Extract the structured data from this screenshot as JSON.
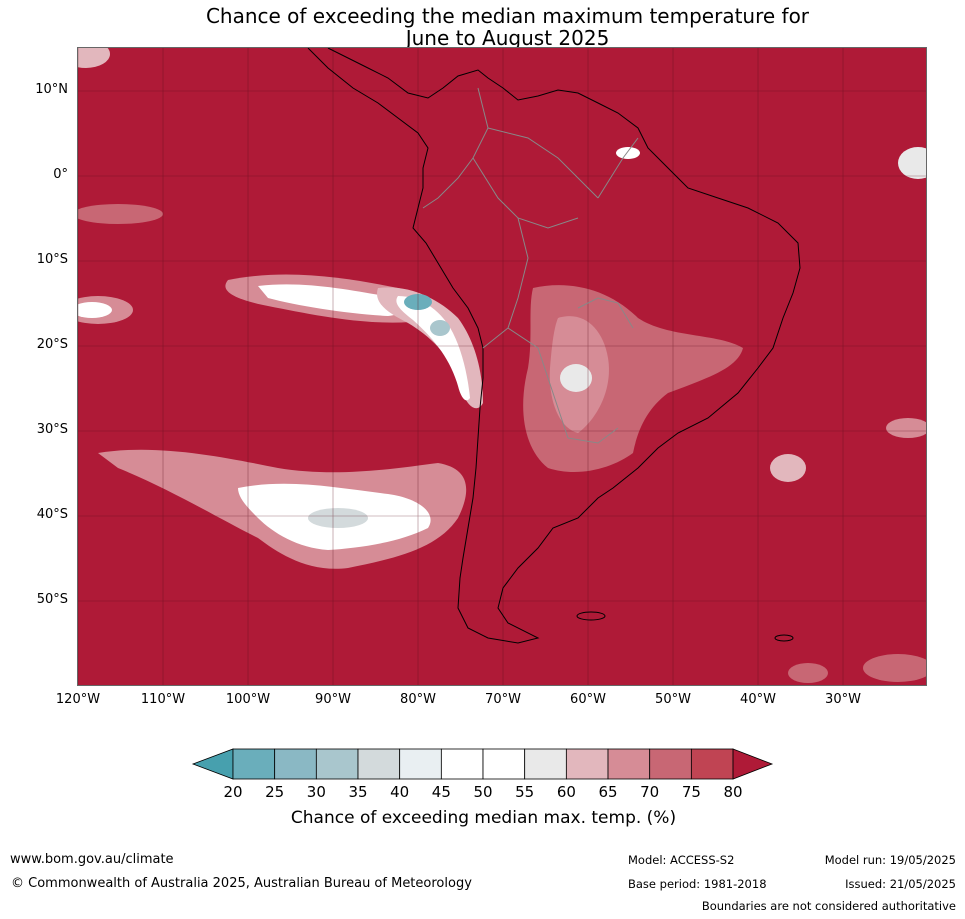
{
  "title": {
    "line1": "Chance of exceeding the median maximum temperature for",
    "line2": "June to August 2025"
  },
  "map": {
    "background_color": "#af1a37",
    "lat_labels": [
      "10°N",
      "0°",
      "10°S",
      "20°S",
      "30°S",
      "40°S",
      "50°S"
    ],
    "lon_labels": [
      "120°W",
      "110°W",
      "100°W",
      "90°W",
      "80°W",
      "70°W",
      "60°W",
      "50°W",
      "40°W",
      "30°W"
    ]
  },
  "colorbar": {
    "ticks": [
      "20",
      "25",
      "30",
      "35",
      "40",
      "45",
      "50",
      "55",
      "60",
      "65",
      "70",
      "75",
      "80"
    ],
    "colors": [
      "#47a0ae",
      "#6aaebb",
      "#8ab8c4",
      "#a9c6cd",
      "#d3dadc",
      "#e9eff2",
      "#ffffff",
      "#ffffff",
      "#e9e9e9",
      "#e2b7bd",
      "#d68c96",
      "#c86774",
      "#c04453",
      "#af1a37"
    ],
    "label": "Chance of exceeding median max. temp. (%)"
  },
  "footer": {
    "website": "www.bom.gov.au/climate",
    "copyright": "© Commonwealth of Australia 2025, Australian Bureau of Meteorology",
    "model": "Model: ACCESS-S2",
    "base_period": "Base period: 1981-2018",
    "model_run": "Model run: 19/05/2025",
    "issued": "Issued: 21/05/2025",
    "disclaimer": "Boundaries are not considered authoritative"
  }
}
